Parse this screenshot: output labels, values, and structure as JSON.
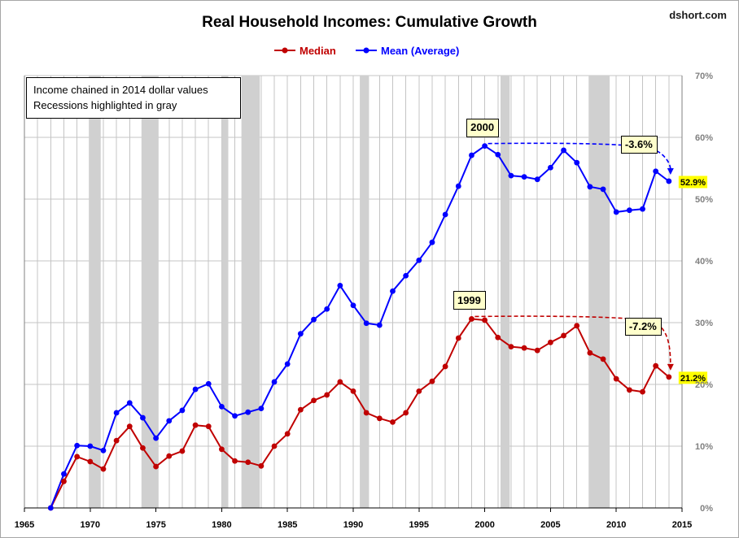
{
  "chart_data": {
    "type": "line",
    "title": "Real Household Incomes: Cumulative Growth",
    "source": "dshort.com",
    "xlabel": "",
    "ylabel": "",
    "xlim": [
      1965,
      2015
    ],
    "ylim": [
      0,
      70
    ],
    "grid": true,
    "legend": "top-center",
    "x_ticks": [
      "1965",
      "1970",
      "1975",
      "1980",
      "1985",
      "1990",
      "1995",
      "2000",
      "2005",
      "2010",
      "2015"
    ],
    "y_ticks": [
      "0%",
      "10%",
      "20%",
      "30%",
      "40%",
      "50%",
      "60%",
      "70%"
    ],
    "x": [
      1967,
      1968,
      1969,
      1970,
      1971,
      1972,
      1973,
      1974,
      1975,
      1976,
      1977,
      1978,
      1979,
      1980,
      1981,
      1982,
      1983,
      1984,
      1985,
      1986,
      1987,
      1988,
      1989,
      1990,
      1991,
      1992,
      1993,
      1994,
      1995,
      1996,
      1997,
      1998,
      1999,
      2000,
      2001,
      2002,
      2003,
      2004,
      2005,
      2006,
      2007,
      2008,
      2009,
      2010,
      2011,
      2012,
      2013,
      2014
    ],
    "series": [
      {
        "name": "Median",
        "color": "#c00000",
        "values": [
          0,
          4.3,
          8.3,
          7.5,
          6.3,
          10.9,
          13.2,
          9.7,
          6.7,
          8.4,
          9.2,
          13.4,
          13.2,
          9.5,
          7.6,
          7.4,
          6.8,
          10.0,
          12.0,
          15.9,
          17.4,
          18.3,
          20.4,
          18.9,
          15.4,
          14.5,
          13.9,
          15.4,
          18.9,
          20.5,
          22.9,
          27.5,
          30.6,
          30.4,
          27.6,
          26.1,
          25.9,
          25.5,
          26.8,
          27.9,
          29.5,
          25.1,
          24.1,
          20.9,
          19.1,
          18.8,
          23.0,
          21.2
        ]
      },
      {
        "name": "Mean (Average)",
        "color": "#0000ff",
        "values": [
          0,
          5.5,
          10.1,
          10.0,
          9.3,
          15.4,
          17.0,
          14.6,
          11.3,
          14.1,
          15.8,
          19.2,
          20.1,
          16.4,
          14.9,
          15.5,
          16.1,
          20.4,
          23.3,
          28.2,
          30.5,
          32.2,
          36.0,
          32.8,
          29.9,
          29.6,
          35.1,
          37.6,
          40.1,
          43.0,
          47.5,
          52.1,
          57.1,
          58.6,
          57.2,
          53.8,
          53.6,
          53.2,
          55.1,
          57.9,
          55.9,
          52.0,
          51.6,
          47.9,
          48.2,
          48.4,
          54.5,
          52.9
        ]
      }
    ],
    "recessions": [
      [
        1969.9,
        1970.8
      ],
      [
        1973.9,
        1975.2
      ],
      [
        1980.0,
        1980.5
      ],
      [
        1981.5,
        1982.9
      ],
      [
        1990.5,
        1991.2
      ],
      [
        2001.2,
        2001.9
      ],
      [
        2007.9,
        2009.5
      ]
    ],
    "notes": [
      "Income chained in 2014 dollar values",
      "Recessions highlighted in gray"
    ],
    "annotations": {
      "peaks": [
        {
          "series": 1,
          "year": 2000,
          "label": "2000"
        },
        {
          "series": 0,
          "year": 1999,
          "label": "1999"
        }
      ],
      "declines": [
        {
          "series": 1,
          "from": 2000,
          "to": 2014,
          "label": "-3.6%"
        },
        {
          "series": 0,
          "from": 1999,
          "to": 2014,
          "label": "-7.2%"
        }
      ],
      "end_values": [
        {
          "series": 1,
          "year": 2014,
          "label": "52.9%"
        },
        {
          "series": 0,
          "year": 2014,
          "label": "21.2%"
        }
      ]
    },
    "colors": {
      "recession": "#d0d0d0",
      "grid": "#c4c4c4",
      "label_box": "#ffffcc",
      "end_highlight": "#ffff00"
    }
  }
}
